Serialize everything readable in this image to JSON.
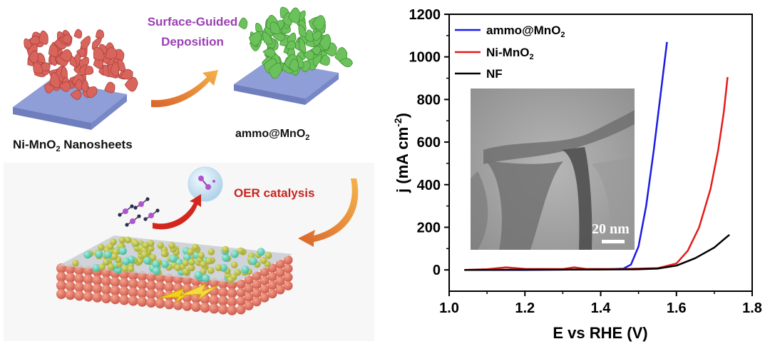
{
  "scheme": {
    "label_ni_mno2_main": "Ni-MnO",
    "label_ni_mno2_sub": "2",
    "label_ni_mno2_tail": " Nanosheets",
    "label_ammo_main": "ammo@MnO",
    "label_ammo_sub": "2",
    "step_line1": "Surface-Guided",
    "step_line2": "Deposition",
    "oer_label": "OER catalysis",
    "colors": {
      "nanosheet": "#d9645c",
      "ammo": "#6cc25a",
      "substrate": "#8f9ed6",
      "purple_text": "#9b3fb3",
      "red_text": "#c8241f",
      "arrow": "#e9842f"
    }
  },
  "chart_data": {
    "type": "line",
    "xlabel": "E vs RHE (V)",
    "ylabel_main": "j (mA cm",
    "ylabel_sup": "-2",
    "ylabel_tail": ")",
    "xlim": [
      1.0,
      1.8
    ],
    "ylim": [
      -100,
      1200
    ],
    "xticks": [
      "1.0",
      "1.2",
      "1.4",
      "1.6",
      "1.8"
    ],
    "yticks": [
      "0",
      "200",
      "400",
      "600",
      "800",
      "1000",
      "1200"
    ],
    "xtick_values": [
      1.0,
      1.2,
      1.4,
      1.6,
      1.8
    ],
    "ytick_values": [
      0,
      200,
      400,
      600,
      800,
      1000,
      1200
    ],
    "legend_position": "top-left",
    "series": [
      {
        "name": "ammo@MnO",
        "name_sub": "2",
        "color": "#1a1ae6",
        "x": [
          1.04,
          1.2,
          1.35,
          1.42,
          1.46,
          1.48,
          1.5,
          1.52,
          1.54,
          1.56,
          1.575
        ],
        "y": [
          0,
          0,
          2,
          3,
          6,
          25,
          110,
          300,
          560,
          850,
          1070
        ]
      },
      {
        "name": "Ni-MnO",
        "name_sub": "2",
        "color": "#e61a1a",
        "x": [
          1.04,
          1.1,
          1.15,
          1.2,
          1.3,
          1.33,
          1.36,
          1.45,
          1.55,
          1.6,
          1.63,
          1.66,
          1.69,
          1.71,
          1.725,
          1.735
        ],
        "y": [
          0,
          3,
          12,
          5,
          4,
          12,
          5,
          4,
          8,
          30,
          90,
          200,
          380,
          560,
          740,
          905
        ]
      },
      {
        "name": "NF",
        "color": "#000000",
        "x": [
          1.04,
          1.2,
          1.4,
          1.5,
          1.55,
          1.6,
          1.65,
          1.7,
          1.74
        ],
        "y": [
          0,
          1,
          2,
          3,
          6,
          20,
          55,
          105,
          165
        ]
      }
    ],
    "inset": {
      "scale_bar_label": "20 nm"
    }
  }
}
